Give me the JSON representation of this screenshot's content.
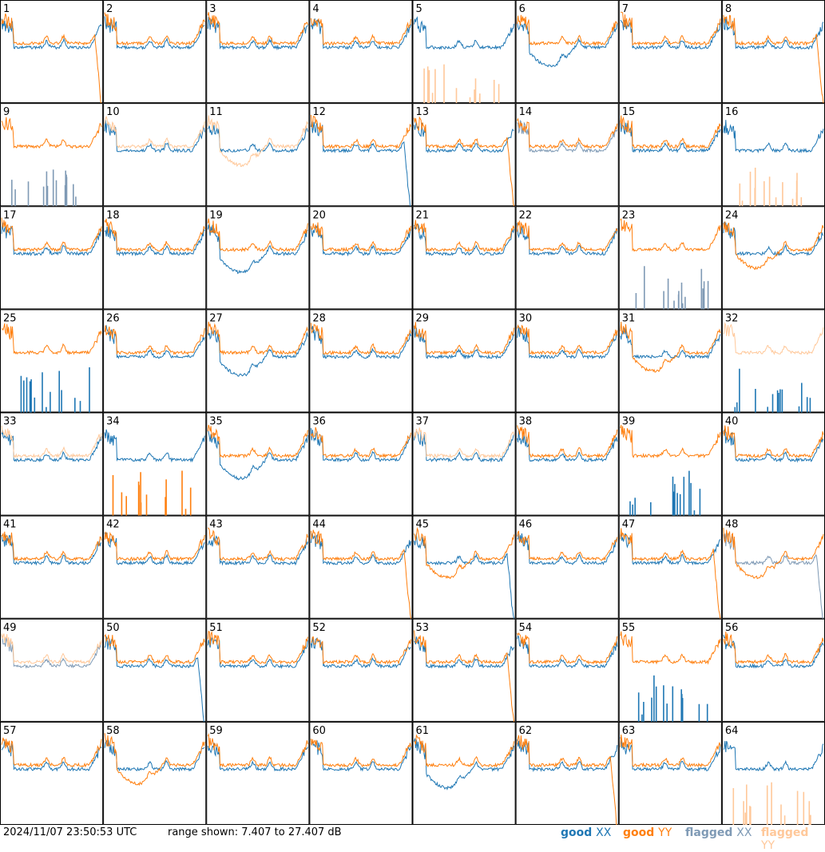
{
  "footer": {
    "timestamp": "2024/11/07 23:50:53 UTC",
    "range": "range shown: 7.407 to 27.407 dB",
    "legend": [
      {
        "word": "good",
        "pol": "XX",
        "color": "#1f77b4",
        "pol_color": "#1f77b4"
      },
      {
        "word": "good",
        "pol": "YY",
        "color": "#ff7f0e",
        "pol_color": "#ff7f0e"
      },
      {
        "word": "flagged",
        "pol": "XX",
        "color": "#7f9ab5",
        "pol_color": "#7f9ab5"
      },
      {
        "word": "flagged",
        "pol": "YY",
        "color": "#ffc89a",
        "pol_color": "#ffc89a"
      }
    ]
  },
  "colors": {
    "good_xx": "#1f77b4",
    "good_yy": "#ff7f0e",
    "flagged_xx": "#7f9ab5",
    "flagged_yy": "#ffc89a"
  },
  "chart_data": {
    "type": "line",
    "grid": "8x8 small multiples",
    "ylim_db": [
      7.407,
      27.407
    ],
    "tiles": [
      {
        "id": "1",
        "xx": "normal",
        "yy": "dropend",
        "xx_flag": false,
        "yy_flag": false
      },
      {
        "id": "2",
        "xx": "normal",
        "yy": "normal",
        "xx_flag": false,
        "yy_flag": false
      },
      {
        "id": "3",
        "xx": "normal",
        "yy": "normal",
        "xx_flag": false,
        "yy_flag": false
      },
      {
        "id": "4",
        "xx": "normal",
        "yy": "normal",
        "xx_flag": false,
        "yy_flag": false
      },
      {
        "id": "5",
        "xx": "normal",
        "yy": "spikes",
        "xx_flag": false,
        "yy_flag": true
      },
      {
        "id": "6",
        "xx": "dip",
        "yy": "normal",
        "xx_flag": false,
        "yy_flag": false
      },
      {
        "id": "7",
        "xx": "normal",
        "yy": "normal",
        "xx_flag": false,
        "yy_flag": false
      },
      {
        "id": "8",
        "xx": "normal",
        "yy": "dropend",
        "xx_flag": false,
        "yy_flag": false
      },
      {
        "id": "9",
        "xx": "spikes",
        "yy": "normal",
        "xx_flag": true,
        "yy_flag": false
      },
      {
        "id": "10",
        "xx": "normal",
        "yy": "normal",
        "xx_flag": false,
        "yy_flag": true
      },
      {
        "id": "11",
        "xx": "normal",
        "yy": "dip",
        "xx_flag": false,
        "yy_flag": true
      },
      {
        "id": "12",
        "xx": "dropend",
        "yy": "normal",
        "xx_flag": false,
        "yy_flag": false
      },
      {
        "id": "13",
        "xx": "normal",
        "yy": "dropend",
        "xx_flag": false,
        "yy_flag": false
      },
      {
        "id": "14",
        "xx": "normal",
        "yy": "normal",
        "xx_flag": true,
        "yy_flag": false
      },
      {
        "id": "15",
        "xx": "normal",
        "yy": "normal",
        "xx_flag": false,
        "yy_flag": false
      },
      {
        "id": "16",
        "xx": "normal",
        "yy": "spikes",
        "xx_flag": false,
        "yy_flag": true
      },
      {
        "id": "17",
        "xx": "normal",
        "yy": "normal",
        "xx_flag": false,
        "yy_flag": false
      },
      {
        "id": "18",
        "xx": "normal",
        "yy": "normal",
        "xx_flag": false,
        "yy_flag": false
      },
      {
        "id": "19",
        "xx": "dip",
        "yy": "normal",
        "xx_flag": false,
        "yy_flag": false
      },
      {
        "id": "20",
        "xx": "normal",
        "yy": "normal",
        "xx_flag": false,
        "yy_flag": false
      },
      {
        "id": "21",
        "xx": "normal",
        "yy": "normal",
        "xx_flag": false,
        "yy_flag": false
      },
      {
        "id": "22",
        "xx": "normal",
        "yy": "normal",
        "xx_flag": false,
        "yy_flag": false
      },
      {
        "id": "23",
        "xx": "spikes",
        "yy": "normal",
        "xx_flag": true,
        "yy_flag": false
      },
      {
        "id": "24",
        "xx": "normal",
        "yy": "dip",
        "xx_flag": false,
        "yy_flag": false
      },
      {
        "id": "25",
        "xx": "spikes",
        "yy": "normal",
        "xx_flag": false,
        "yy_flag": false
      },
      {
        "id": "26",
        "xx": "normal",
        "yy": "normal",
        "xx_flag": false,
        "yy_flag": false
      },
      {
        "id": "27",
        "xx": "dip",
        "yy": "normal",
        "xx_flag": false,
        "yy_flag": false
      },
      {
        "id": "28",
        "xx": "normal",
        "yy": "normal",
        "xx_flag": false,
        "yy_flag": false
      },
      {
        "id": "29",
        "xx": "normal",
        "yy": "normal",
        "xx_flag": false,
        "yy_flag": false
      },
      {
        "id": "30",
        "xx": "normal",
        "yy": "normal",
        "xx_flag": false,
        "yy_flag": false
      },
      {
        "id": "31",
        "xx": "normal",
        "yy": "dip",
        "xx_flag": false,
        "yy_flag": false
      },
      {
        "id": "32",
        "xx": "spikes",
        "yy": "normal",
        "xx_flag": false,
        "yy_flag": true
      },
      {
        "id": "33",
        "xx": "normal",
        "yy": "normal",
        "xx_flag": false,
        "yy_flag": true
      },
      {
        "id": "34",
        "xx": "normal",
        "yy": "spikes",
        "xx_flag": false,
        "yy_flag": false
      },
      {
        "id": "35",
        "xx": "dip",
        "yy": "normal",
        "xx_flag": false,
        "yy_flag": false
      },
      {
        "id": "36",
        "xx": "normal",
        "yy": "normal",
        "xx_flag": false,
        "yy_flag": false
      },
      {
        "id": "37",
        "xx": "normal",
        "yy": "normal",
        "xx_flag": false,
        "yy_flag": true
      },
      {
        "id": "38",
        "xx": "normal",
        "yy": "normal",
        "xx_flag": false,
        "yy_flag": false
      },
      {
        "id": "39",
        "xx": "spikes",
        "yy": "normal",
        "xx_flag": false,
        "yy_flag": false
      },
      {
        "id": "40",
        "xx": "normal",
        "yy": "normal",
        "xx_flag": false,
        "yy_flag": false
      },
      {
        "id": "41",
        "xx": "normal",
        "yy": "normal",
        "xx_flag": false,
        "yy_flag": false
      },
      {
        "id": "42",
        "xx": "normal",
        "yy": "normal",
        "xx_flag": false,
        "yy_flag": false
      },
      {
        "id": "43",
        "xx": "normal",
        "yy": "normal",
        "xx_flag": false,
        "yy_flag": false
      },
      {
        "id": "44",
        "xx": "normal",
        "yy": "dropend",
        "xx_flag": false,
        "yy_flag": false
      },
      {
        "id": "45",
        "xx": "dropend",
        "yy": "dip",
        "xx_flag": false,
        "yy_flag": false
      },
      {
        "id": "46",
        "xx": "normal",
        "yy": "normal",
        "xx_flag": false,
        "yy_flag": false
      },
      {
        "id": "47",
        "xx": "normal",
        "yy": "dropend",
        "xx_flag": false,
        "yy_flag": false
      },
      {
        "id": "48",
        "xx": "dropend",
        "yy": "dip",
        "xx_flag": true,
        "yy_flag": false
      },
      {
        "id": "49",
        "xx": "normal",
        "yy": "normal",
        "xx_flag": true,
        "yy_flag": true
      },
      {
        "id": "50",
        "xx": "dropend",
        "yy": "normal",
        "xx_flag": false,
        "yy_flag": false
      },
      {
        "id": "51",
        "xx": "normal",
        "yy": "normal",
        "xx_flag": false,
        "yy_flag": false
      },
      {
        "id": "52",
        "xx": "normal",
        "yy": "normal",
        "xx_flag": false,
        "yy_flag": false
      },
      {
        "id": "53",
        "xx": "normal",
        "yy": "dropend",
        "xx_flag": false,
        "yy_flag": false
      },
      {
        "id": "54",
        "xx": "normal",
        "yy": "normal",
        "xx_flag": false,
        "yy_flag": false
      },
      {
        "id": "55",
        "xx": "spikes",
        "yy": "normal",
        "xx_flag": false,
        "yy_flag": false
      },
      {
        "id": "56",
        "xx": "normal",
        "yy": "normal",
        "xx_flag": false,
        "yy_flag": false
      },
      {
        "id": "57",
        "xx": "normal",
        "yy": "normal",
        "xx_flag": false,
        "yy_flag": false
      },
      {
        "id": "58",
        "xx": "normal",
        "yy": "dip",
        "xx_flag": false,
        "yy_flag": false
      },
      {
        "id": "59",
        "xx": "normal",
        "yy": "normal",
        "xx_flag": false,
        "yy_flag": false
      },
      {
        "id": "60",
        "xx": "normal",
        "yy": "normal",
        "xx_flag": false,
        "yy_flag": false
      },
      {
        "id": "61",
        "xx": "dip",
        "yy": "normal",
        "xx_flag": false,
        "yy_flag": false
      },
      {
        "id": "62",
        "xx": "normal",
        "yy": "dropend",
        "xx_flag": false,
        "yy_flag": false
      },
      {
        "id": "63",
        "xx": "normal",
        "yy": "normal",
        "xx_flag": false,
        "yy_flag": false
      },
      {
        "id": "64",
        "xx": "normal",
        "yy": "spikes",
        "xx_flag": false,
        "yy_flag": true
      }
    ]
  }
}
